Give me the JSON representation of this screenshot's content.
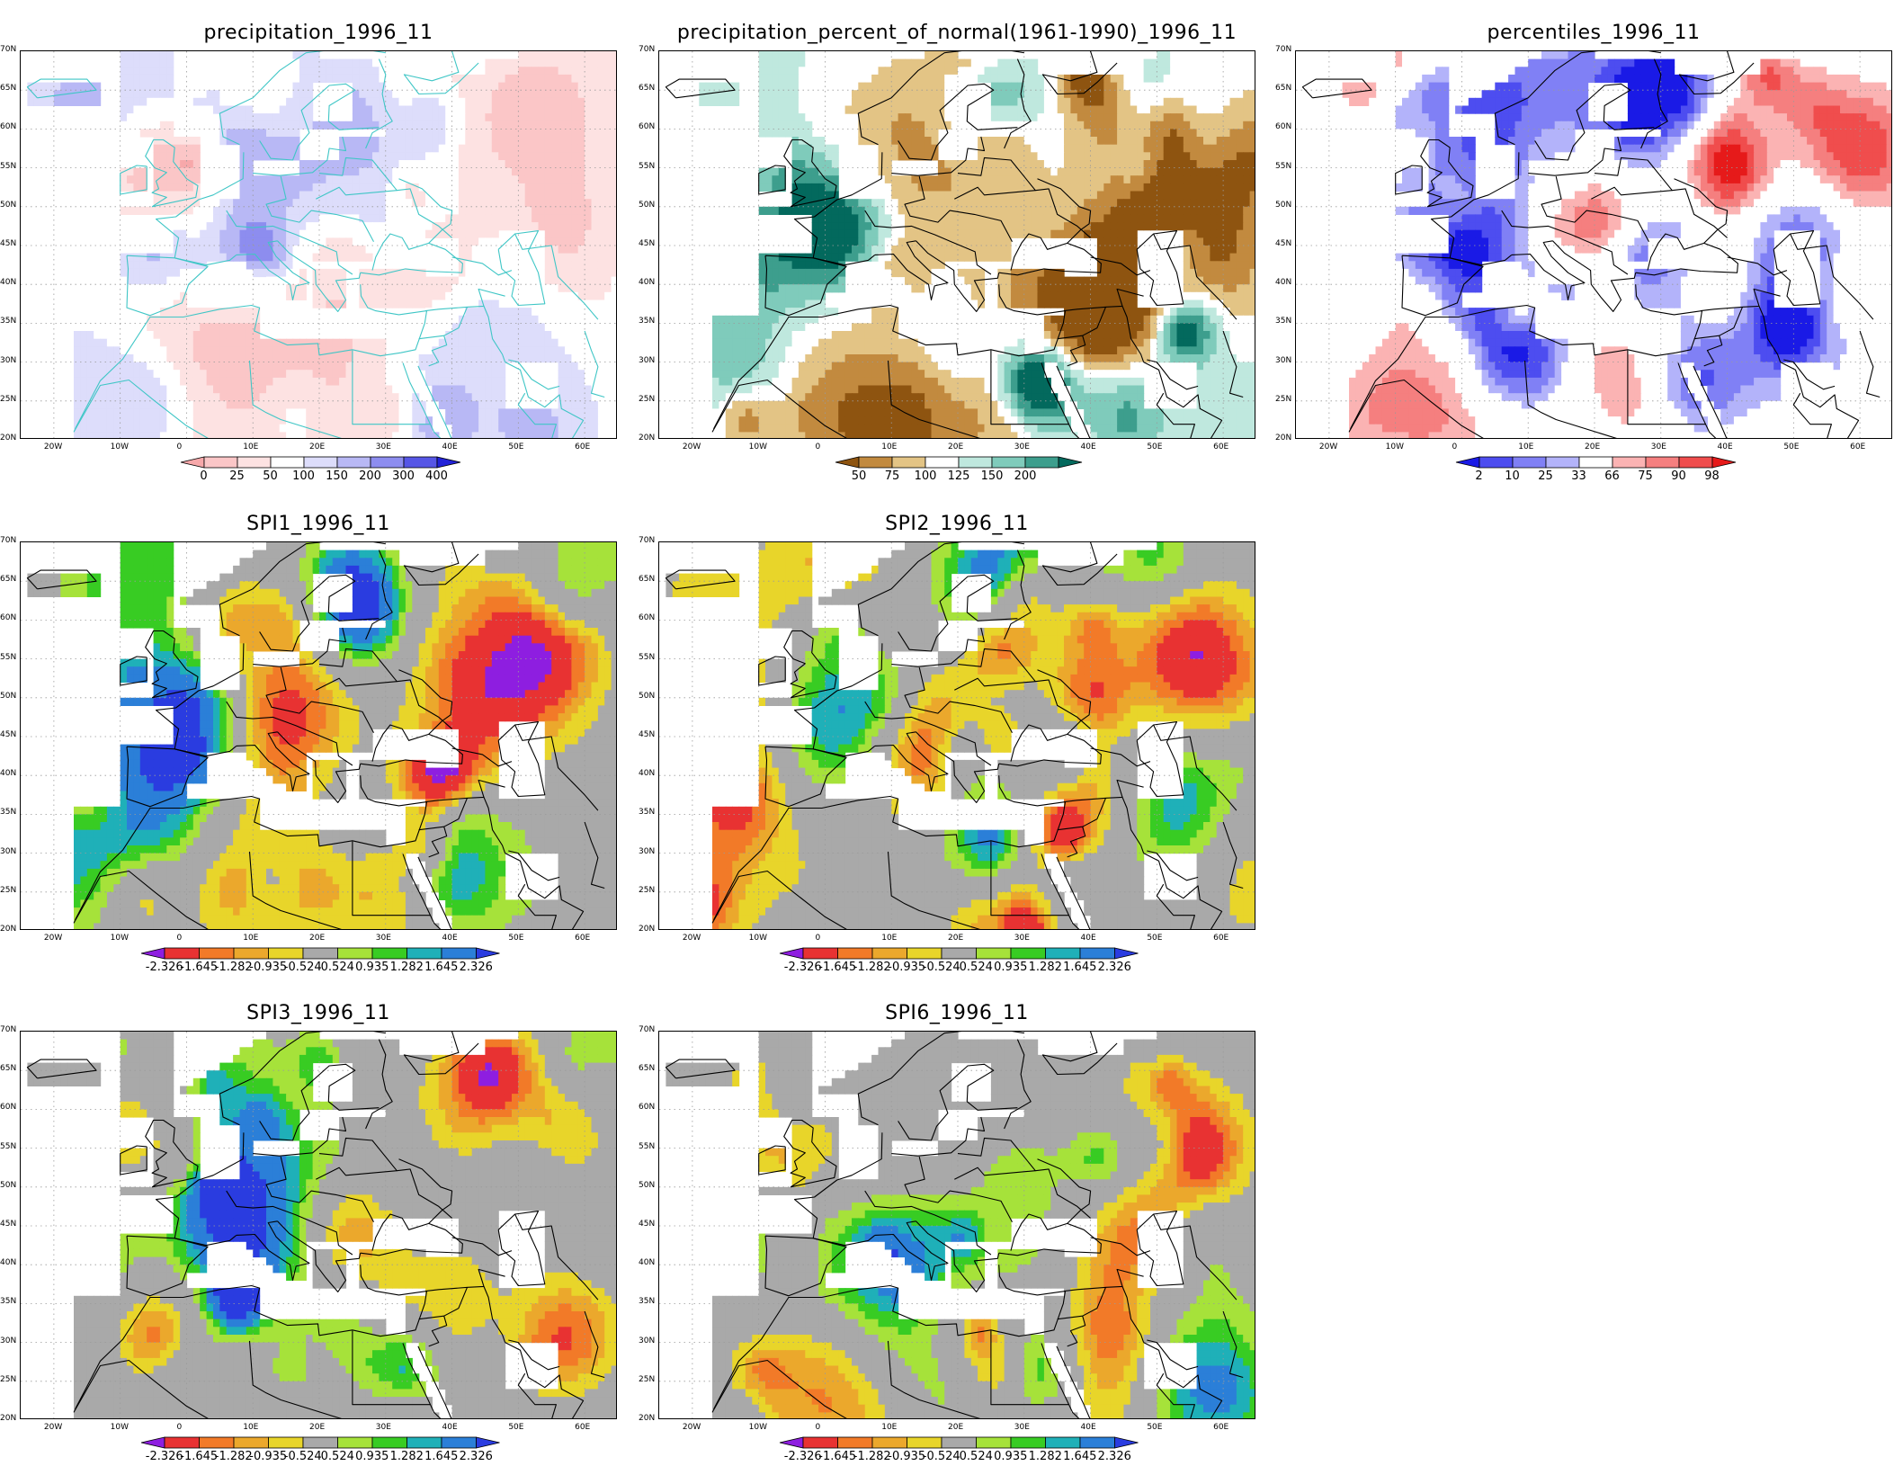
{
  "lat_ticks": [
    "70N",
    "65N",
    "60N",
    "55N",
    "50N",
    "45N",
    "40N",
    "35N",
    "30N",
    "25N",
    "20N"
  ],
  "lon_ticks": [
    "20W",
    "10W",
    "0",
    "10E",
    "20E",
    "30E",
    "40E",
    "50E",
    "60E"
  ],
  "panels": [
    {
      "id": "precip",
      "title": "precipitation_1996_11",
      "palette": "precip",
      "colorbar": {
        "labels": [
          "0",
          "25",
          "50",
          "100",
          "150",
          "200",
          "300",
          "400"
        ],
        "colors": [
          "#f7a8aa",
          "#fbc6c7",
          "#fde2e2",
          "#ffffff",
          "#ddddfb",
          "#b8b8f5",
          "#8d8def",
          "#5656e6",
          "#2222d8"
        ]
      }
    },
    {
      "id": "pnorm",
      "title": "precipitation_percent_of_normal(1961-1990)_1996_11",
      "palette": "pnorm",
      "colorbar": {
        "labels": [
          "50",
          "75",
          "100",
          "125",
          "150",
          "200"
        ],
        "colors": [
          "#8e5410",
          "#c28a3f",
          "#e3c485",
          "#ffffff",
          "#bfe8de",
          "#7fcbbb",
          "#3d9e8d",
          "#03695d"
        ]
      }
    },
    {
      "id": "pct",
      "title": "percentiles_1996_11",
      "palette": "pct",
      "colorbar": {
        "labels": [
          "2",
          "10",
          "25",
          "33",
          "66",
          "75",
          "90",
          "98"
        ],
        "colors": [
          "#1a1ae6",
          "#4d4df0",
          "#8080f5",
          "#b3b3fa",
          "#ffffff",
          "#fbb3b3",
          "#f57f7f",
          "#f04d4d",
          "#e61a1a"
        ]
      }
    },
    {
      "id": "spi1",
      "title": "SPI1_1996_11",
      "palette": "spi",
      "colorbar": {
        "labels": [
          "-2.326",
          "-1.645",
          "-1.282",
          "-0.935",
          "-0.524",
          "0.524",
          "0.935",
          "1.282",
          "1.645",
          "2.326"
        ],
        "colors": [
          "#8e1ee0",
          "#e83232",
          "#f27a28",
          "#eba82c",
          "#e8d52a",
          "#a9a9a9",
          "#a6e23a",
          "#38cc23",
          "#1fb0b8",
          "#2b7fd8",
          "#2a3ce0"
        ]
      }
    },
    {
      "id": "spi2",
      "title": "SPI2_1996_11",
      "palette": "spi",
      "colorbar": {
        "labels": [
          "-2.326",
          "-1.645",
          "-1.282",
          "-0.935",
          "-0.524",
          "0.524",
          "0.935",
          "1.282",
          "1.645",
          "2.326"
        ],
        "colors": [
          "#8e1ee0",
          "#e83232",
          "#f27a28",
          "#eba82c",
          "#e8d52a",
          "#a9a9a9",
          "#a6e23a",
          "#38cc23",
          "#1fb0b8",
          "#2b7fd8",
          "#2a3ce0"
        ]
      }
    },
    {
      "id": "spi3",
      "title": "SPI3_1996_11",
      "palette": "spi",
      "colorbar": {
        "labels": [
          "-2.326",
          "-1.645",
          "-1.282",
          "-0.935",
          "-0.524",
          "0.524",
          "0.935",
          "1.282",
          "1.645",
          "2.326"
        ],
        "colors": [
          "#8e1ee0",
          "#e83232",
          "#f27a28",
          "#eba82c",
          "#e8d52a",
          "#a9a9a9",
          "#a6e23a",
          "#38cc23",
          "#1fb0b8",
          "#2b7fd8",
          "#2a3ce0"
        ]
      }
    },
    {
      "id": "spi6",
      "title": "SPI6_1996_11",
      "palette": "spi",
      "colorbar": {
        "labels": [
          "-2.326",
          "-1.645",
          "-1.282",
          "-0.935",
          "-0.524",
          "0.524",
          "0.935",
          "1.282",
          "1.645",
          "2.326"
        ],
        "colors": [
          "#8e1ee0",
          "#e83232",
          "#f27a28",
          "#eba82c",
          "#e8d52a",
          "#a9a9a9",
          "#a6e23a",
          "#38cc23",
          "#1fb0b8",
          "#2b7fd8",
          "#2a3ce0"
        ]
      }
    }
  ]
}
